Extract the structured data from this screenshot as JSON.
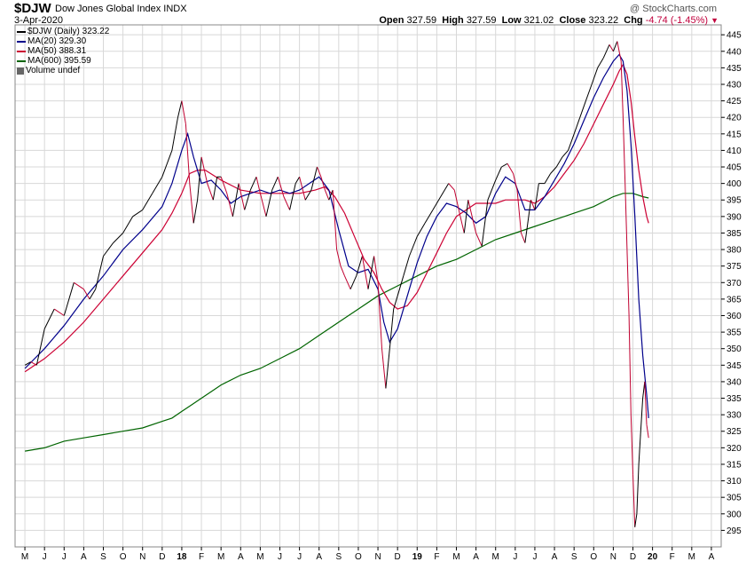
{
  "header": {
    "symbol": "$DJW",
    "name": "Dow Jones Global Index",
    "exchange": "INDX",
    "watermark": "@ StockCharts.com",
    "date": "3-Apr-2020",
    "open_label": "Open",
    "open": "327.59",
    "high_label": "High",
    "high": "327.59",
    "low_label": "Low",
    "low": "321.02",
    "close_label": "Close",
    "close": "323.22",
    "chg_label": "Chg",
    "chg": "-4.74 (-1.45%)",
    "chg_marker": "▼"
  },
  "legend": [
    {
      "label": "$DJW (Daily) 323.22",
      "color": "#000000"
    },
    {
      "label": "MA(20) 329.30",
      "color": "#00008b"
    },
    {
      "label": "MA(50) 388.31",
      "color": "#cc0033"
    },
    {
      "label": "MA(600) 395.59",
      "color": "#006400"
    },
    {
      "label": "Volume undef",
      "color": "#666666"
    }
  ],
  "colors": {
    "price_up": "#000000",
    "price_down": "#c00030",
    "ma20": "#00008b",
    "ma50": "#cc0033",
    "ma600": "#006400",
    "grid": "#d8d8d8",
    "frame": "#888888"
  },
  "chart_data": {
    "type": "line",
    "x_axis_labels": [
      "M",
      "J",
      "J",
      "A",
      "S",
      "O",
      "N",
      "D",
      "18",
      "F",
      "M",
      "A",
      "M",
      "J",
      "J",
      "A",
      "S",
      "O",
      "N",
      "D",
      "19",
      "F",
      "M",
      "A",
      "M",
      "J",
      "J",
      "A",
      "S",
      "O",
      "N",
      "D",
      "20",
      "F",
      "M",
      "A"
    ],
    "year_labels": [
      "18",
      "19",
      "20"
    ],
    "y_ticks": [
      295,
      300,
      305,
      310,
      315,
      320,
      325,
      330,
      335,
      340,
      345,
      350,
      355,
      360,
      365,
      370,
      375,
      380,
      385,
      390,
      395,
      400,
      405,
      410,
      415,
      420,
      425,
      430,
      435,
      440,
      445
    ],
    "ylim": [
      290,
      448
    ],
    "grid": true,
    "legend_position": "top-left",
    "series": [
      {
        "name": "$DJW (Daily)",
        "type": "price",
        "points": [
          [
            0,
            345
          ],
          [
            0.3,
            346
          ],
          [
            0.6,
            345
          ],
          [
            1.0,
            356
          ],
          [
            1.5,
            362
          ],
          [
            2.0,
            360
          ],
          [
            2.5,
            370
          ],
          [
            3.0,
            368
          ],
          [
            3.3,
            365
          ],
          [
            3.6,
            368
          ],
          [
            4.0,
            378
          ],
          [
            4.5,
            382
          ],
          [
            5.0,
            385
          ],
          [
            5.5,
            390
          ],
          [
            6.0,
            392
          ],
          [
            6.5,
            397
          ],
          [
            7.0,
            402
          ],
          [
            7.5,
            410
          ],
          [
            7.8,
            420
          ],
          [
            8.0,
            425
          ],
          [
            8.2,
            418
          ],
          [
            8.4,
            400
          ],
          [
            8.6,
            388
          ],
          [
            8.8,
            395
          ],
          [
            9.0,
            408
          ],
          [
            9.3,
            400
          ],
          [
            9.6,
            395
          ],
          [
            9.8,
            402
          ],
          [
            10.0,
            402
          ],
          [
            10.3,
            397
          ],
          [
            10.6,
            390
          ],
          [
            10.9,
            400
          ],
          [
            11.2,
            392
          ],
          [
            11.5,
            398
          ],
          [
            11.8,
            402
          ],
          [
            12.0,
            397
          ],
          [
            12.3,
            390
          ],
          [
            12.6,
            398
          ],
          [
            12.9,
            402
          ],
          [
            13.2,
            396
          ],
          [
            13.5,
            392
          ],
          [
            13.8,
            400
          ],
          [
            14.0,
            402
          ],
          [
            14.3,
            395
          ],
          [
            14.6,
            398
          ],
          [
            14.9,
            405
          ],
          [
            15.1,
            402
          ],
          [
            15.3,
            398
          ],
          [
            15.5,
            395
          ],
          [
            15.7,
            398
          ],
          [
            15.9,
            380
          ],
          [
            16.1,
            375
          ],
          [
            16.3,
            372
          ],
          [
            16.6,
            368
          ],
          [
            16.9,
            372
          ],
          [
            17.2,
            378
          ],
          [
            17.5,
            368
          ],
          [
            17.8,
            378
          ],
          [
            18.0,
            370
          ],
          [
            18.2,
            350
          ],
          [
            18.4,
            338
          ],
          [
            18.6,
            350
          ],
          [
            18.8,
            362
          ],
          [
            19.0,
            366
          ],
          [
            19.3,
            372
          ],
          [
            19.6,
            378
          ],
          [
            20.0,
            384
          ],
          [
            20.4,
            388
          ],
          [
            20.8,
            392
          ],
          [
            21.2,
            396
          ],
          [
            21.6,
            400
          ],
          [
            21.9,
            398
          ],
          [
            22.2,
            390
          ],
          [
            22.4,
            385
          ],
          [
            22.6,
            395
          ],
          [
            23.0,
            385
          ],
          [
            23.3,
            381
          ],
          [
            23.6,
            395
          ],
          [
            24.0,
            401
          ],
          [
            24.3,
            405
          ],
          [
            24.6,
            406
          ],
          [
            24.9,
            403
          ],
          [
            25.1,
            398
          ],
          [
            25.3,
            385
          ],
          [
            25.5,
            382
          ],
          [
            25.8,
            395
          ],
          [
            26.0,
            392
          ],
          [
            26.2,
            400
          ],
          [
            26.5,
            400
          ],
          [
            26.8,
            403
          ],
          [
            27.1,
            405
          ],
          [
            27.4,
            408
          ],
          [
            27.7,
            410
          ],
          [
            28.0,
            415
          ],
          [
            28.3,
            420
          ],
          [
            28.6,
            425
          ],
          [
            28.9,
            430
          ],
          [
            29.2,
            435
          ],
          [
            29.5,
            438
          ],
          [
            29.8,
            442
          ],
          [
            30.0,
            440
          ],
          [
            30.2,
            443
          ],
          [
            30.4,
            437
          ],
          [
            30.5,
            420
          ],
          [
            30.6,
            400
          ],
          [
            30.7,
            380
          ],
          [
            30.8,
            360
          ],
          [
            30.9,
            330
          ],
          [
            31.0,
            312
          ],
          [
            31.1,
            296
          ],
          [
            31.2,
            300
          ],
          [
            31.3,
            315
          ],
          [
            31.4,
            325
          ],
          [
            31.5,
            335
          ],
          [
            31.6,
            340
          ],
          [
            31.7,
            327
          ],
          [
            31.8,
            323
          ]
        ]
      },
      {
        "name": "MA(20)",
        "type": "ma",
        "points": [
          [
            0,
            344
          ],
          [
            1,
            350
          ],
          [
            2,
            357
          ],
          [
            3,
            365
          ],
          [
            4,
            372
          ],
          [
            5,
            380
          ],
          [
            6,
            386
          ],
          [
            7,
            393
          ],
          [
            7.5,
            400
          ],
          [
            8.0,
            410
          ],
          [
            8.3,
            415
          ],
          [
            8.6,
            408
          ],
          [
            9.0,
            400
          ],
          [
            9.5,
            401
          ],
          [
            10.0,
            398
          ],
          [
            10.5,
            394
          ],
          [
            11.0,
            396
          ],
          [
            11.5,
            397
          ],
          [
            12.0,
            398
          ],
          [
            12.5,
            397
          ],
          [
            13.0,
            398
          ],
          [
            13.5,
            397
          ],
          [
            14.0,
            398
          ],
          [
            14.5,
            400
          ],
          [
            15.0,
            402
          ],
          [
            15.5,
            398
          ],
          [
            16.0,
            386
          ],
          [
            16.5,
            375
          ],
          [
            17.0,
            373
          ],
          [
            17.5,
            374
          ],
          [
            18.0,
            368
          ],
          [
            18.3,
            358
          ],
          [
            18.6,
            352
          ],
          [
            19.0,
            356
          ],
          [
            19.5,
            366
          ],
          [
            20.0,
            376
          ],
          [
            20.5,
            384
          ],
          [
            21.0,
            390
          ],
          [
            21.5,
            394
          ],
          [
            22.0,
            393
          ],
          [
            22.5,
            391
          ],
          [
            23.0,
            388
          ],
          [
            23.5,
            390
          ],
          [
            24.0,
            397
          ],
          [
            24.5,
            402
          ],
          [
            25.0,
            400
          ],
          [
            25.5,
            392
          ],
          [
            26.0,
            392
          ],
          [
            26.5,
            396
          ],
          [
            27.0,
            401
          ],
          [
            27.5,
            406
          ],
          [
            28.0,
            412
          ],
          [
            28.5,
            419
          ],
          [
            29.0,
            426
          ],
          [
            29.5,
            432
          ],
          [
            30.0,
            437
          ],
          [
            30.3,
            439
          ],
          [
            30.5,
            437
          ],
          [
            30.7,
            428
          ],
          [
            30.9,
            412
          ],
          [
            31.1,
            390
          ],
          [
            31.3,
            365
          ],
          [
            31.5,
            348
          ],
          [
            31.7,
            336
          ],
          [
            31.8,
            329
          ]
        ]
      },
      {
        "name": "MA(50)",
        "type": "ma",
        "points": [
          [
            0,
            343
          ],
          [
            1,
            347
          ],
          [
            2,
            352
          ],
          [
            3,
            358
          ],
          [
            4,
            365
          ],
          [
            5,
            372
          ],
          [
            6,
            379
          ],
          [
            7,
            386
          ],
          [
            7.5,
            391
          ],
          [
            8.0,
            397
          ],
          [
            8.4,
            403
          ],
          [
            8.8,
            404
          ],
          [
            9.2,
            404
          ],
          [
            10.0,
            401
          ],
          [
            11.0,
            398
          ],
          [
            12.0,
            397
          ],
          [
            13.0,
            397
          ],
          [
            14.0,
            397
          ],
          [
            14.8,
            398
          ],
          [
            15.3,
            399
          ],
          [
            15.8,
            396
          ],
          [
            16.3,
            391
          ],
          [
            16.8,
            384
          ],
          [
            17.3,
            377
          ],
          [
            17.8,
            373
          ],
          [
            18.2,
            368
          ],
          [
            18.6,
            364
          ],
          [
            19.0,
            362
          ],
          [
            19.5,
            363
          ],
          [
            20.0,
            367
          ],
          [
            20.5,
            373
          ],
          [
            21.0,
            379
          ],
          [
            21.5,
            385
          ],
          [
            22.0,
            390
          ],
          [
            22.5,
            392
          ],
          [
            23.0,
            394
          ],
          [
            23.5,
            394
          ],
          [
            24.0,
            394
          ],
          [
            24.5,
            395
          ],
          [
            25.0,
            395
          ],
          [
            25.5,
            395
          ],
          [
            26.0,
            394
          ],
          [
            26.5,
            396
          ],
          [
            27.0,
            399
          ],
          [
            27.5,
            403
          ],
          [
            28.0,
            407
          ],
          [
            28.5,
            412
          ],
          [
            29.0,
            418
          ],
          [
            29.5,
            424
          ],
          [
            30.0,
            430
          ],
          [
            30.3,
            434
          ],
          [
            30.5,
            436
          ],
          [
            30.7,
            433
          ],
          [
            30.9,
            425
          ],
          [
            31.1,
            414
          ],
          [
            31.3,
            404
          ],
          [
            31.5,
            396
          ],
          [
            31.7,
            390
          ],
          [
            31.8,
            388
          ]
        ]
      },
      {
        "name": "MA(600)",
        "type": "ma",
        "points": [
          [
            0,
            319
          ],
          [
            1,
            320
          ],
          [
            2,
            322
          ],
          [
            3,
            323
          ],
          [
            4,
            324
          ],
          [
            5,
            325
          ],
          [
            6,
            326
          ],
          [
            7,
            328
          ],
          [
            7.5,
            329
          ],
          [
            8.0,
            331
          ],
          [
            8.5,
            333
          ],
          [
            9.0,
            335
          ],
          [
            9.5,
            337
          ],
          [
            10.0,
            339
          ],
          [
            11.0,
            342
          ],
          [
            12.0,
            344
          ],
          [
            13.0,
            347
          ],
          [
            14.0,
            350
          ],
          [
            15.0,
            354
          ],
          [
            16.0,
            358
          ],
          [
            17.0,
            362
          ],
          [
            18.0,
            366
          ],
          [
            19.0,
            369
          ],
          [
            20.0,
            372
          ],
          [
            21.0,
            375
          ],
          [
            22.0,
            377
          ],
          [
            23.0,
            380
          ],
          [
            24.0,
            383
          ],
          [
            25.0,
            385
          ],
          [
            26.0,
            387
          ],
          [
            27.0,
            389
          ],
          [
            28.0,
            391
          ],
          [
            29.0,
            393
          ],
          [
            30.0,
            396
          ],
          [
            30.5,
            397
          ],
          [
            31.0,
            397
          ],
          [
            31.5,
            396
          ],
          [
            31.8,
            395.59
          ]
        ]
      }
    ]
  }
}
